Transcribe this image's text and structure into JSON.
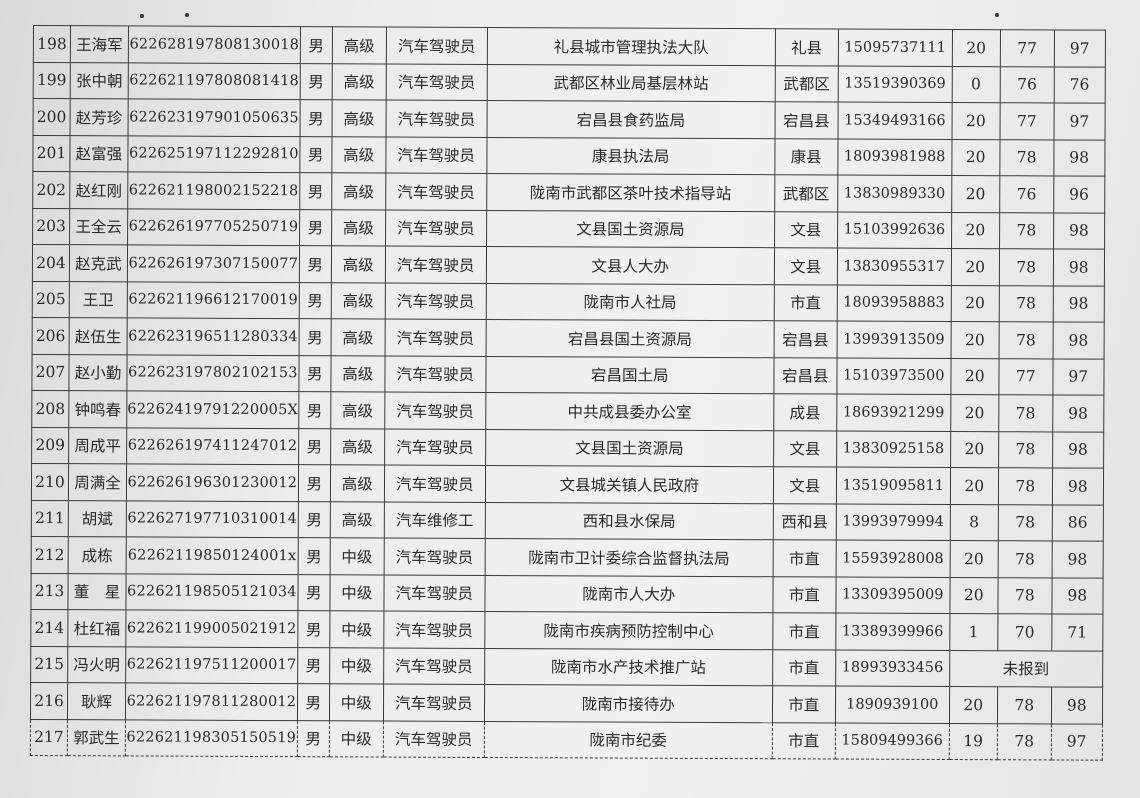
{
  "rows": [
    {
      "no": "198",
      "name": "王海军",
      "id": "622628197808130018",
      "sex": "男",
      "level": "高级",
      "job": "汽车驾驶员",
      "unit": "礼县城市管理执法大队",
      "region": "礼县",
      "phone": "15095737111",
      "s1": "20",
      "s2": "77",
      "total": "97"
    },
    {
      "no": "199",
      "name": "张中朝",
      "id": "622621197808081418",
      "sex": "男",
      "level": "高级",
      "job": "汽车驾驶员",
      "unit": "武都区林业局基层林站",
      "region": "武都区",
      "phone": "13519390369",
      "s1": "0",
      "s2": "76",
      "total": "76"
    },
    {
      "no": "200",
      "name": "赵芳珍",
      "id": "622623197901050635",
      "sex": "男",
      "level": "高级",
      "job": "汽车驾驶员",
      "unit": "宕昌县食药监局",
      "region": "宕昌县",
      "phone": "15349493166",
      "s1": "20",
      "s2": "77",
      "total": "97"
    },
    {
      "no": "201",
      "name": "赵富强",
      "id": "622625197112292810",
      "sex": "男",
      "level": "高级",
      "job": "汽车驾驶员",
      "unit": "康县执法局",
      "region": "康县",
      "phone": "18093981988",
      "s1": "20",
      "s2": "78",
      "total": "98"
    },
    {
      "no": "202",
      "name": "赵红刚",
      "id": "622621198002152218",
      "sex": "男",
      "level": "高级",
      "job": "汽车驾驶员",
      "unit": "陇南市武都区茶叶技术指导站",
      "region": "武都区",
      "phone": "13830989330",
      "s1": "20",
      "s2": "76",
      "total": "96"
    },
    {
      "no": "203",
      "name": "王全云",
      "id": "622626197705250719",
      "sex": "男",
      "level": "高级",
      "job": "汽车驾驶员",
      "unit": "文县国土资源局",
      "region": "文县",
      "phone": "15103992636",
      "s1": "20",
      "s2": "78",
      "total": "98"
    },
    {
      "no": "204",
      "name": "赵克武",
      "id": "622626197307150077",
      "sex": "男",
      "level": "高级",
      "job": "汽车驾驶员",
      "unit": "文县人大办",
      "region": "文县",
      "phone": "13830955317",
      "s1": "20",
      "s2": "78",
      "total": "98"
    },
    {
      "no": "205",
      "name": "王卫",
      "id": "622621196612170019",
      "sex": "男",
      "level": "高级",
      "job": "汽车驾驶员",
      "unit": "陇南市人社局",
      "region": "市直",
      "phone": "18093958883",
      "s1": "20",
      "s2": "78",
      "total": "98"
    },
    {
      "no": "206",
      "name": "赵伍生",
      "id": "622623196511280334",
      "sex": "男",
      "level": "高级",
      "job": "汽车驾驶员",
      "unit": "宕昌县国土资源局",
      "region": "宕昌县",
      "phone": "13993913509",
      "s1": "20",
      "s2": "78",
      "total": "98"
    },
    {
      "no": "207",
      "name": "赵小勤",
      "id": "622623197802102153",
      "sex": "男",
      "level": "高级",
      "job": "汽车驾驶员",
      "unit": "宕昌国土局",
      "region": "宕昌县",
      "phone": "15103973500",
      "s1": "20",
      "s2": "77",
      "total": "97"
    },
    {
      "no": "208",
      "name": "钟鸣春",
      "id": "62262419791220005X",
      "sex": "男",
      "level": "高级",
      "job": "汽车驾驶员",
      "unit": "中共成县委办公室",
      "region": "成县",
      "phone": "18693921299",
      "s1": "20",
      "s2": "78",
      "total": "98"
    },
    {
      "no": "209",
      "name": "周成平",
      "id": "622626197411247012",
      "sex": "男",
      "level": "高级",
      "job": "汽车驾驶员",
      "unit": "文县国土资源局",
      "region": "文县",
      "phone": "13830925158",
      "s1": "20",
      "s2": "78",
      "total": "98"
    },
    {
      "no": "210",
      "name": "周满全",
      "id": "622626196301230012",
      "sex": "男",
      "level": "高级",
      "job": "汽车驾驶员",
      "unit": "文县城关镇人民政府",
      "region": "文县",
      "phone": "13519095811",
      "s1": "20",
      "s2": "78",
      "total": "98"
    },
    {
      "no": "211",
      "name": "胡斌",
      "id": "622627197710310014",
      "sex": "男",
      "level": "高级",
      "job": "汽车维修工",
      "unit": "西和县水保局",
      "region": "西和县",
      "phone": "13993979994",
      "s1": "8",
      "s2": "78",
      "total": "86"
    },
    {
      "no": "212",
      "name": "成栋",
      "id": "62262119850124001x",
      "sex": "男",
      "level": "中级",
      "job": "汽车驾驶员",
      "unit": "陇南市卫计委综合监督执法局",
      "region": "市直",
      "phone": "15593928008",
      "s1": "20",
      "s2": "78",
      "total": "98"
    },
    {
      "no": "213",
      "name": "董　星",
      "id": "622621198505121034",
      "sex": "男",
      "level": "中级",
      "job": "汽车驾驶员",
      "unit": "陇南市人大办",
      "region": "市直",
      "phone": "13309395009",
      "s1": "20",
      "s2": "78",
      "total": "98"
    },
    {
      "no": "214",
      "name": "杜红福",
      "id": "622621199005021912",
      "sex": "男",
      "level": "中级",
      "job": "汽车驾驶员",
      "unit": "陇南市疾病预防控制中心",
      "region": "市直",
      "phone": "13389399966",
      "s1": "1",
      "s2": "70",
      "total": "71"
    },
    {
      "no": "215",
      "name": "冯火明",
      "id": "622621197511200017",
      "sex": "男",
      "level": "中级",
      "job": "汽车驾驶员",
      "unit": "陇南市水产技术推广站",
      "region": "市直",
      "phone": "18993933456",
      "note": "未报到"
    },
    {
      "no": "216",
      "name": "耿辉",
      "id": "622621197811280012",
      "sex": "男",
      "level": "中级",
      "job": "汽车驾驶员",
      "unit": "陇南市接待办",
      "region": "市直",
      "phone": "1890939100",
      "s1": "20",
      "s2": "78",
      "total": "98"
    },
    {
      "no": "217",
      "name": "郭武生",
      "id": "622621198305150519",
      "sex": "男",
      "level": "中级",
      "job": "汽车驾驶员",
      "unit": "陇南市纪委",
      "region": "市直",
      "phone": "15809499366",
      "s1": "19",
      "s2": "78",
      "total": "97"
    }
  ]
}
